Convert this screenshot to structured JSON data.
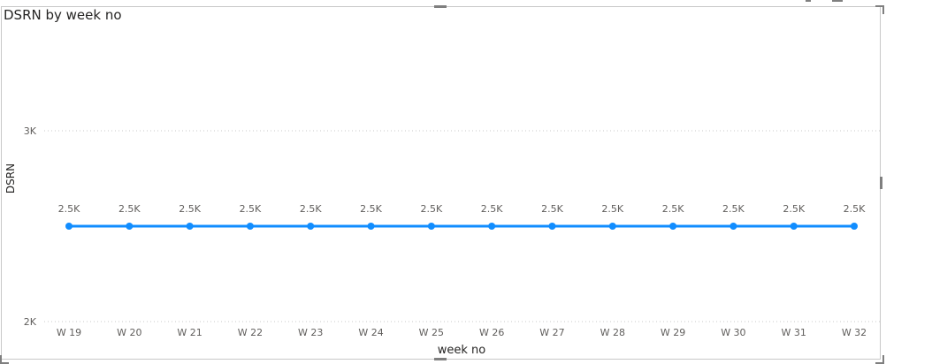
{
  "chart_data": {
    "type": "line",
    "title": "DSRN by week no",
    "xlabel": "week no",
    "ylabel": "DSRN",
    "categories": [
      "W 19",
      "W 20",
      "W 21",
      "W 22",
      "W 23",
      "W 24",
      "W 25",
      "W 26",
      "W 27",
      "W 28",
      "W 29",
      "W 30",
      "W 31",
      "W 32"
    ],
    "series": [
      {
        "values": [
          2500,
          2500,
          2500,
          2500,
          2500,
          2500,
          2500,
          2500,
          2500,
          2500,
          2500,
          2500,
          2500,
          2500
        ],
        "data_labels": [
          "2.5K",
          "2.5K",
          "2.5K",
          "2.5K",
          "2.5K",
          "2.5K",
          "2.5K",
          "2.5K",
          "2.5K",
          "2.5K",
          "2.5K",
          "2.5K",
          "2.5K",
          "2.5K"
        ],
        "color": "#118DFF"
      }
    ],
    "yticks": [
      {
        "value": 2000,
        "label": "2K"
      },
      {
        "value": 3000,
        "label": "3K"
      }
    ],
    "ylim": [
      2000,
      3000
    ],
    "grid": true,
    "grid_style": "dotted",
    "legend": "none",
    "colors": {
      "series": "#118DFF",
      "text": "#605E5C",
      "title": "#252423",
      "grid": "#C8C8C8"
    }
  }
}
